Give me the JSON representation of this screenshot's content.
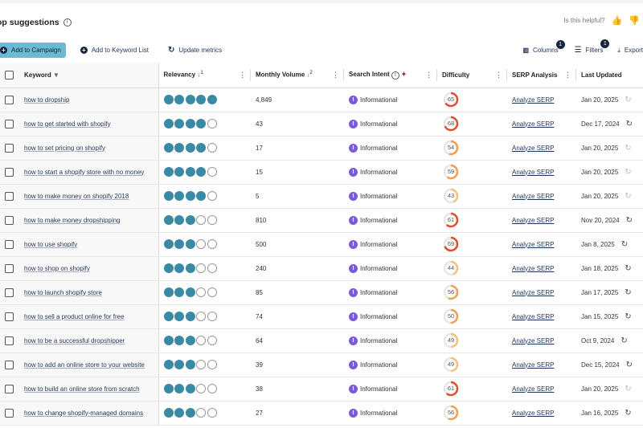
{
  "header": {
    "title": "op suggestions",
    "helpful": "Is this helpful?"
  },
  "actions": {
    "add_campaign": "Add to Campaign",
    "add_list": "Add to Keyword List",
    "update": "Update metrics",
    "columns": "Columns",
    "columns_badge": "1",
    "filters": "Filters",
    "filters_badge": "1",
    "export": "Export"
  },
  "columns": {
    "keyword": "Keyword",
    "relevancy": "Relevancy",
    "relevancy_sort": "1",
    "volume": "Monthly Volume",
    "volume_sort": "2",
    "intent": "Search Intent",
    "difficulty": "Difficulty",
    "serp": "SERP Analysis",
    "updated": "Last Updated"
  },
  "colors": {
    "accent": "#6bbad3",
    "relevancy": "#3a8aa5",
    "intent": "#7b5bd6",
    "hard": "#e04e2b",
    "medium": "#f0a050",
    "easy": "#f5c07a"
  },
  "rows": [
    {
      "keyword": "how to dropship",
      "relevancy": 5,
      "volume": "4,849",
      "intent": "Informational",
      "intent_letter": "I",
      "difficulty": 65,
      "serp": "Analyze SERP",
      "updated": "Jan 20, 2025",
      "refresh_active": false
    },
    {
      "keyword": "how to get started with shopify",
      "relevancy": 4,
      "volume": "43",
      "intent": "Informational",
      "intent_letter": "I",
      "difficulty": 68,
      "serp": "Analyze SERP",
      "updated": "Dec 17, 2024",
      "refresh_active": true
    },
    {
      "keyword": "how to set pricing on shopify",
      "relevancy": 4,
      "volume": "17",
      "intent": "Informational",
      "intent_letter": "I",
      "difficulty": 54,
      "serp": "Analyze SERP",
      "updated": "Jan 20, 2025",
      "refresh_active": false
    },
    {
      "keyword": "how to start a shopify store with no money",
      "relevancy": 4,
      "volume": "15",
      "intent": "Informational",
      "intent_letter": "I",
      "difficulty": 59,
      "serp": "Analyze SERP",
      "updated": "Jan 20, 2025",
      "refresh_active": false
    },
    {
      "keyword": "how to make money on shopify 2018",
      "relevancy": 4,
      "volume": "5",
      "intent": "Informational",
      "intent_letter": "I",
      "difficulty": 43,
      "serp": "Analyze SERP",
      "updated": "Jan 20, 2025",
      "refresh_active": false
    },
    {
      "keyword": "how to make money dropshipping",
      "relevancy": 3,
      "volume": "810",
      "intent": "Informational",
      "intent_letter": "I",
      "difficulty": 61,
      "serp": "Analyze SERP",
      "updated": "Nov 20, 2024",
      "refresh_active": true
    },
    {
      "keyword": "how to use shopify",
      "relevancy": 3,
      "volume": "500",
      "intent": "Informational",
      "intent_letter": "I",
      "difficulty": 69,
      "serp": "Analyze SERP",
      "updated": "Jan 8, 2025",
      "refresh_active": true
    },
    {
      "keyword": "how to shop on shopify",
      "relevancy": 3,
      "volume": "240",
      "intent": "Informational",
      "intent_letter": "I",
      "difficulty": 44,
      "serp": "Analyze SERP",
      "updated": "Jan 18, 2025",
      "refresh_active": true
    },
    {
      "keyword": "how to launch shopify store",
      "relevancy": 3,
      "volume": "85",
      "intent": "Informational",
      "intent_letter": "I",
      "difficulty": 56,
      "serp": "Analyze SERP",
      "updated": "Jan 17, 2025",
      "refresh_active": true
    },
    {
      "keyword": "how to sell a product online for free",
      "relevancy": 3,
      "volume": "74",
      "intent": "Informational",
      "intent_letter": "I",
      "difficulty": 50,
      "serp": "Analyze SERP",
      "updated": "Jan 15, 2025",
      "refresh_active": true
    },
    {
      "keyword": "how to be a successful dropshipper",
      "relevancy": 3,
      "volume": "64",
      "intent": "Informational",
      "intent_letter": "I",
      "difficulty": 49,
      "serp": "Analyze SERP",
      "updated": "Oct 9, 2024",
      "refresh_active": true
    },
    {
      "keyword": "how to add an online store to your website",
      "relevancy": 3,
      "volume": "39",
      "intent": "Informational",
      "intent_letter": "I",
      "difficulty": 49,
      "serp": "Analyze SERP",
      "updated": "Dec 15, 2024",
      "refresh_active": true
    },
    {
      "keyword": "how to build an online store from scratch",
      "relevancy": 3,
      "volume": "38",
      "intent": "Informational",
      "intent_letter": "I",
      "difficulty": 61,
      "serp": "Analyze SERP",
      "updated": "Jan 20, 2025",
      "refresh_active": false
    },
    {
      "keyword": "how to change shopify-managed domains",
      "relevancy": 3,
      "volume": "27",
      "intent": "Informational",
      "intent_letter": "I",
      "difficulty": 56,
      "serp": "Analyze SERP",
      "updated": "Jan 16, 2025",
      "refresh_active": true
    }
  ]
}
